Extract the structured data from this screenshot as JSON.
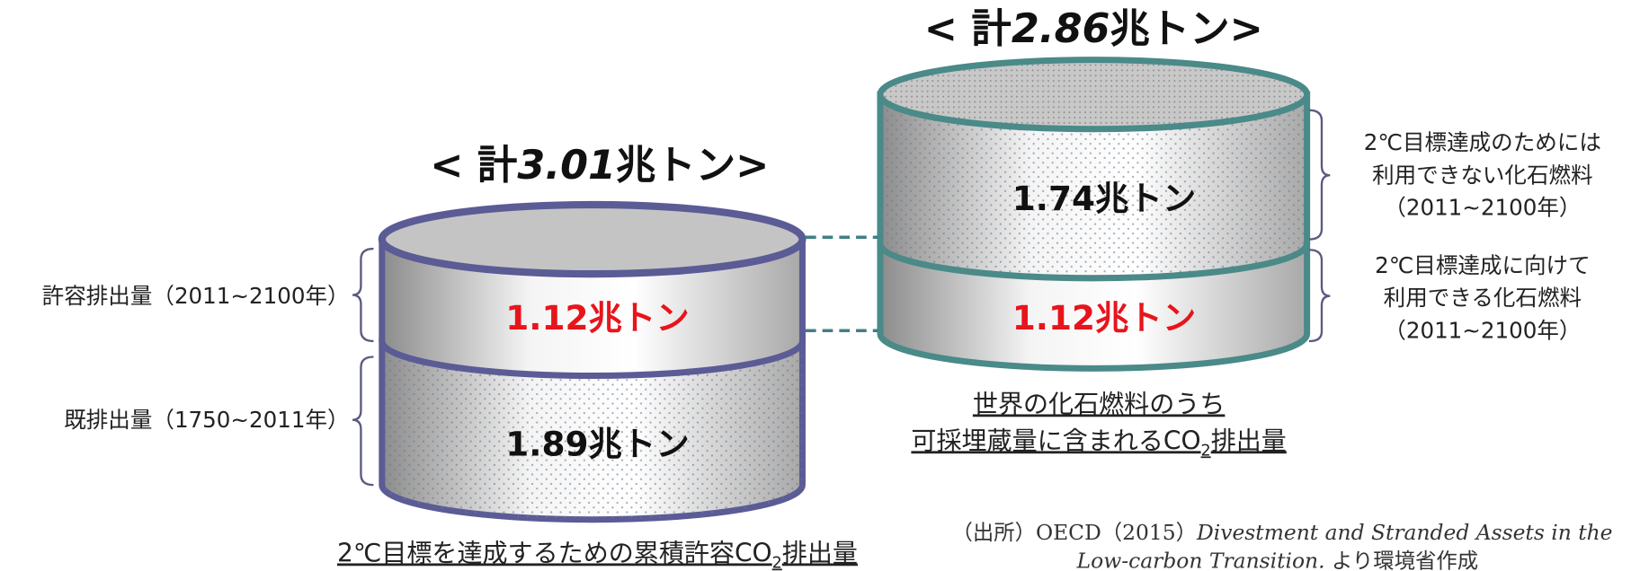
{
  "left": {
    "title": {
      "prefix": "< 計",
      "value": "3.01",
      "suffix": "兆トン>"
    },
    "top_segment": "1.12兆トン",
    "bottom_segment": "1.89兆トン",
    "top_label": "許容排出量（2011~2100年）",
    "bottom_label": "既排出量（1750~2011年）",
    "caption": {
      "before": "2℃目標を達成するための累積許容CO",
      "sub": "2",
      "after": "排出量"
    }
  },
  "right": {
    "title": {
      "prefix": "< 計",
      "value": "2.86",
      "suffix": "兆トン>"
    },
    "top_segment": "1.74兆トン",
    "bottom_segment": "1.12兆トン",
    "top_label": [
      "2℃目標達成のためには",
      "利用できない化石燃料",
      "（2011~2100年）"
    ],
    "bottom_label": [
      "2℃目標達成に向けて",
      "利用できる化石燃料",
      "（2011~2100年）"
    ],
    "caption": {
      "line1": "世界の化石燃料のうち",
      "before": "可採埋蔵量に含まれるCO",
      "sub": "2",
      "after": "排出量"
    }
  },
  "source": {
    "line1_prefix": "（出所）OECD（2015）",
    "line1_italic": "Divestment and Stranded Assets in the",
    "line2_italic": "Low-carbon Transition.",
    "line2_suffix": " より環境省作成"
  }
}
